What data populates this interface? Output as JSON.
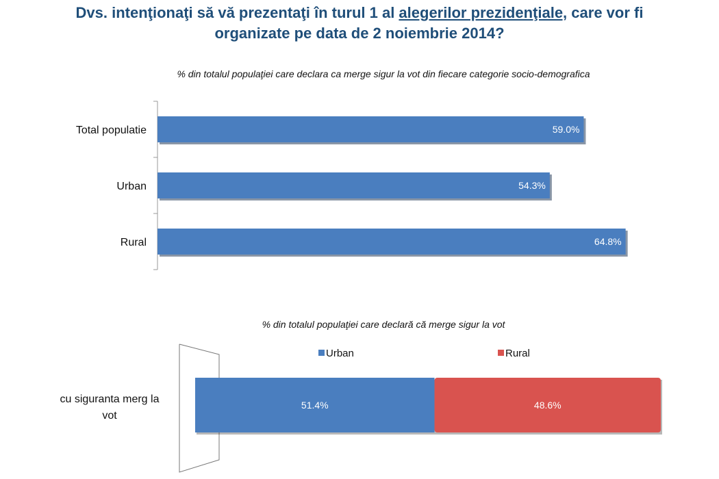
{
  "title": {
    "part1": "Dvs. intenţionaţi să vă prezentaţi în turul 1 al ",
    "underlined": "alegerilor prezidenţiale,",
    "part2": " care vor fi",
    "line2": "organizate pe data de 2 noiembrie 2014?"
  },
  "chart_data": [
    {
      "type": "bar",
      "orientation": "horizontal",
      "title": "% din totalul populaţiei care declara ca merge sigur la vot din fiecare categorie socio-demografica",
      "categories": [
        "Total populatie",
        "Urban",
        "Rural"
      ],
      "values": [
        59.0,
        54.3,
        64.8
      ],
      "value_labels": [
        "59.0%",
        "54.3%",
        "64.8%"
      ],
      "xlim": [
        0,
        100
      ],
      "color": "#4a7ebf"
    },
    {
      "type": "bar",
      "orientation": "horizontal",
      "stacked": true,
      "title": "% din totalul populaţiei care declară că merge sigur la vot",
      "categories": [
        "cu siguranta merg la vot"
      ],
      "category_lines": [
        "cu siguranta merg la",
        "vot"
      ],
      "series": [
        {
          "name": "Urban",
          "values": [
            51.4
          ],
          "value_label": "51.4%",
          "color": "#4a7ebf"
        },
        {
          "name": "Rural",
          "values": [
            48.6
          ],
          "value_label": "48.6%",
          "color": "#d9534f"
        }
      ],
      "legend": "top"
    }
  ]
}
